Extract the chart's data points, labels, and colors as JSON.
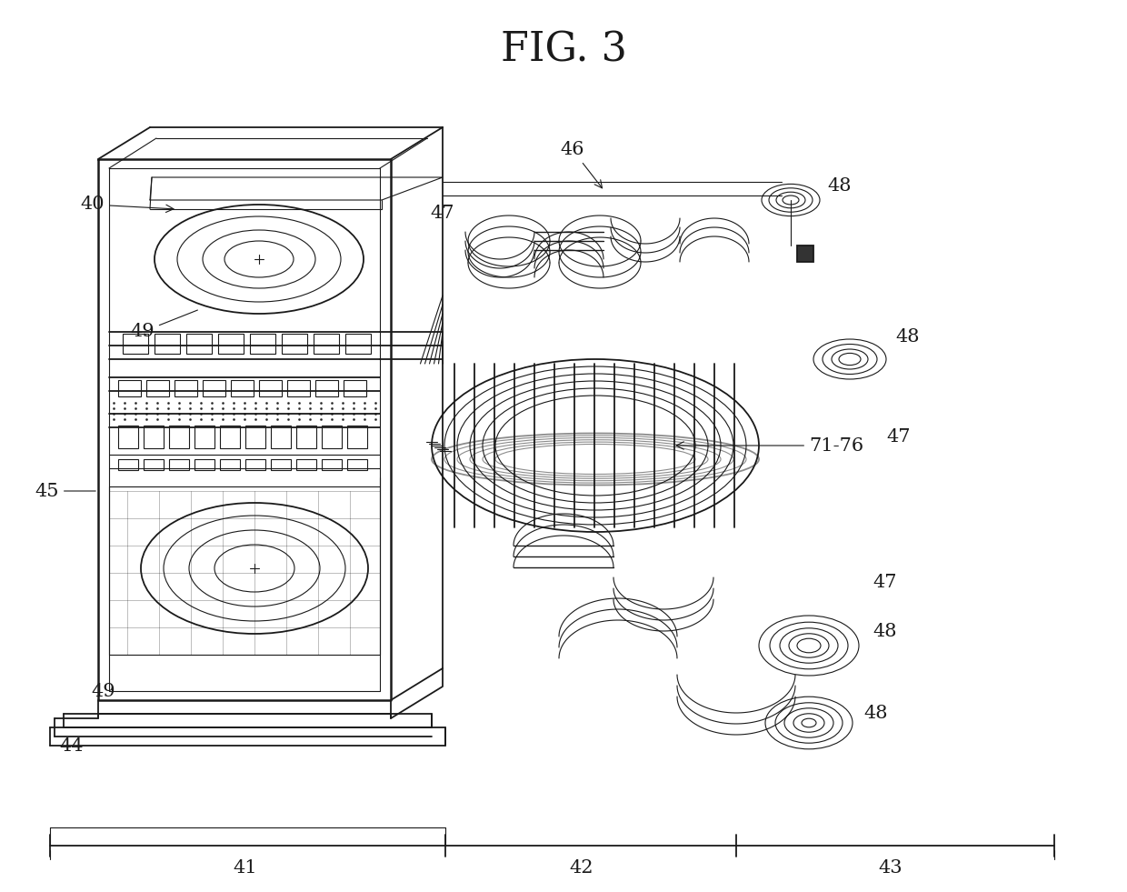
{
  "title": "FIG. 3",
  "title_fontsize": 32,
  "background_color": "#ffffff",
  "line_color": "#1a1a1a",
  "label_fontsize": 15,
  "fig_width": 12.4,
  "fig_height": 9.81,
  "dpi": 100
}
